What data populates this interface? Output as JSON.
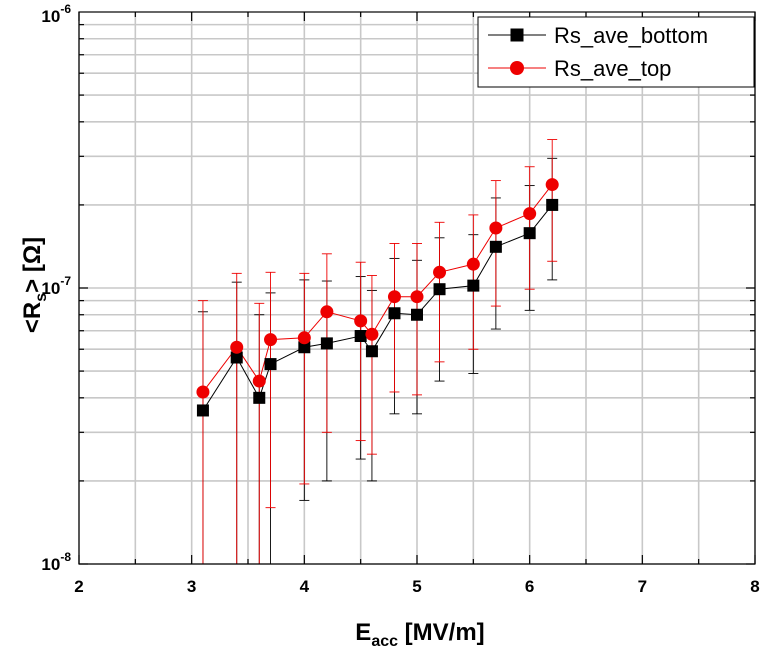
{
  "chart_data": {
    "type": "scatter",
    "xlabel": {
      "main": "E",
      "sub": "acc",
      "rest": " [MV/m]"
    },
    "ylabel": {
      "open": "<R",
      "sub": "s",
      "close": "> [Ω]"
    },
    "xlim": [
      2,
      8
    ],
    "ylim": [
      1e-08,
      1e-06
    ],
    "yscale": "log",
    "grid": true,
    "legend_position": "top-right",
    "x_ticks": [
      "2",
      "3",
      "4",
      "5",
      "6",
      "7",
      "8"
    ],
    "y_ticks": [
      {
        "base": "10",
        "exp": "-8",
        "value": 1e-08
      },
      {
        "base": "10",
        "exp": "-7",
        "value": 1e-07
      },
      {
        "base": "10",
        "exp": "-6",
        "value": 1e-06
      }
    ],
    "series": [
      {
        "name": "Rs_ave_bottom",
        "color": "#000000",
        "marker": "square",
        "x": [
          3.1,
          3.4,
          3.6,
          3.7,
          4.0,
          4.2,
          4.5,
          4.6,
          4.8,
          5.0,
          5.2,
          5.5,
          5.7,
          6.0,
          6.2
        ],
        "y": [
          3.6e-08,
          5.6e-08,
          4e-08,
          5.3e-08,
          6.1e-08,
          6.3e-08,
          6.7e-08,
          5.9e-08,
          8.1e-08,
          8e-08,
          9.9e-08,
          1.02e-07,
          1.41e-07,
          1.58e-07,
          2e-07
        ],
        "err_low": [
          1e-08,
          1e-08,
          1e-08,
          1e-08,
          1.7e-08,
          2e-08,
          2.4e-08,
          2e-08,
          3.5e-08,
          3.5e-08,
          4.6e-08,
          4.9e-08,
          7.1e-08,
          8.3e-08,
          1.07e-07
        ],
        "err_high": [
          8.2e-08,
          1.05e-07,
          8e-08,
          9.6e-08,
          1.07e-07,
          1.06e-07,
          1.1e-07,
          9.8e-08,
          1.28e-07,
          1.26e-07,
          1.52e-07,
          1.56e-07,
          2.12e-07,
          2.35e-07,
          2.95e-07
        ]
      },
      {
        "name": "Rs_ave_top",
        "color": "#ee0000",
        "marker": "circle",
        "x": [
          3.1,
          3.4,
          3.6,
          3.7,
          4.0,
          4.2,
          4.5,
          4.6,
          4.8,
          5.0,
          5.2,
          5.5,
          5.7,
          6.0,
          6.2
        ],
        "y": [
          4.2e-08,
          6.1e-08,
          4.6e-08,
          6.5e-08,
          6.6e-08,
          8.2e-08,
          7.6e-08,
          6.8e-08,
          9.3e-08,
          9.3e-08,
          1.14e-07,
          1.22e-07,
          1.65e-07,
          1.86e-07,
          2.37e-07
        ],
        "err_low": [
          1e-08,
          1e-08,
          1e-08,
          1.6e-08,
          1.95e-08,
          3e-08,
          2.8e-08,
          2.5e-08,
          4.2e-08,
          4.1e-08,
          5.4e-08,
          6e-08,
          8.6e-08,
          9.9e-08,
          1.25e-07
        ],
        "err_high": [
          9e-08,
          1.13e-07,
          8.8e-08,
          1.14e-07,
          1.13e-07,
          1.33e-07,
          1.24e-07,
          1.11e-07,
          1.45e-07,
          1.45e-07,
          1.73e-07,
          1.84e-07,
          2.45e-07,
          2.75e-07,
          3.45e-07
        ]
      }
    ]
  }
}
